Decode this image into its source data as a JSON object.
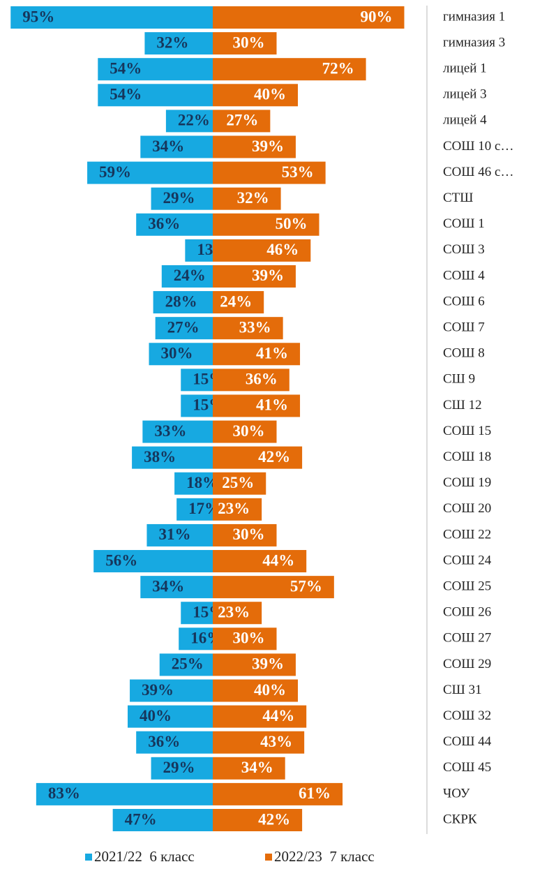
{
  "chart_data": {
    "type": "butterfly-bar",
    "categories": [
      "гимназия 1",
      "гимназия 3",
      "лицей 1",
      "лицей 3",
      "лицей 4",
      "СОШ 10 с…",
      "СОШ 46 с…",
      "СТШ",
      "СОШ 1",
      "СОШ 3",
      "СОШ 4",
      "СОШ 6",
      "СОШ 7",
      "СОШ 8",
      "СШ 9",
      "СШ 12",
      "СОШ 15",
      "СОШ 18",
      "СОШ 19",
      "СОШ 20",
      "СОШ 22",
      "СОШ 24",
      "СОШ 25",
      "СОШ 26",
      "СОШ 27",
      "СОШ 29",
      "СШ 31",
      "СОШ 32",
      "СОШ 44",
      "СОШ 45",
      "ЧОУ",
      "СКРК"
    ],
    "series": [
      {
        "name": "2021/22  6 класс",
        "color": "#17a9e1",
        "values": [
          95,
          32,
          54,
          54,
          22,
          34,
          59,
          29,
          36,
          13,
          24,
          28,
          27,
          30,
          15,
          15,
          33,
          38,
          18,
          17,
          31,
          56,
          34,
          15,
          16,
          25,
          39,
          40,
          36,
          29,
          83,
          47
        ],
        "value_labels": [
          "95%",
          "32%",
          "54%",
          "54%",
          "22%",
          "34%",
          "59%",
          "29%",
          "36%",
          "13%",
          "24%",
          "28%",
          "27%",
          "30%",
          "15%",
          "15%",
          "33%",
          "38%",
          "18%",
          "17%",
          "31%",
          "56%",
          "34%",
          "15%",
          "16%",
          "25%",
          "39%",
          "40%",
          "36%",
          "29%",
          "83%",
          "47%"
        ]
      },
      {
        "name": "2022/23  7 класс",
        "color": "#e46c0a",
        "values": [
          90,
          30,
          72,
          40,
          27,
          39,
          53,
          32,
          50,
          46,
          39,
          24,
          33,
          41,
          36,
          41,
          30,
          42,
          25,
          23,
          30,
          44,
          57,
          23,
          30,
          39,
          40,
          44,
          43,
          34,
          61,
          42
        ],
        "value_labels": [
          "90%",
          "30%",
          "72%",
          "40%",
          "27%",
          "39%",
          "53%",
          "32%",
          "50%",
          "46%",
          "39%",
          "24%",
          "33%",
          "41%",
          "36%",
          "41%",
          "30%",
          "42%",
          "25%",
          "23%",
          "30%",
          "44%",
          "57%",
          "23%",
          "30%",
          "39%",
          "40%",
          "44%",
          "43%",
          "34%",
          "61%",
          "42%"
        ]
      }
    ]
  }
}
